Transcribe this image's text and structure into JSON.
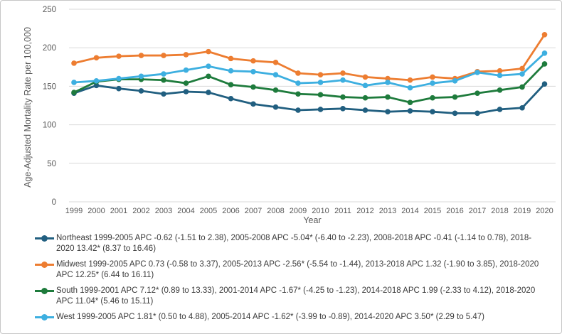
{
  "figure": {
    "background_color": "#FFFFFF",
    "border_color": "#C6C6C6",
    "gridline_color": "#D9D9D9",
    "tick_label_color": "#595959",
    "axis_title_color": "#595959",
    "legend_text_color": "#3A3A3A"
  },
  "chart_data": {
    "type": "line",
    "title": "",
    "xlabel": "Year",
    "ylabel": "Age-Adjusted Mortality Rate per 100,000",
    "x": [
      1999,
      2000,
      2001,
      2002,
      2003,
      2004,
      2005,
      2006,
      2007,
      2008,
      2009,
      2010,
      2011,
      2012,
      2013,
      2014,
      2015,
      2016,
      2017,
      2018,
      2019,
      2020
    ],
    "ylim": [
      0,
      250
    ],
    "y_ticks": [
      0,
      50,
      100,
      150,
      200,
      250
    ],
    "grid": "horizontal-on",
    "legend_position": "bottom-left",
    "marker": "circle",
    "series": [
      {
        "name": "Northeast",
        "color": "#215F80",
        "values": [
          141,
          151,
          147,
          144,
          140,
          143,
          142,
          134,
          127,
          123,
          119,
          120,
          121,
          119,
          117,
          118,
          117,
          115,
          115,
          120,
          122,
          153
        ],
        "legend_label": "Northeast 1999-2005 APC -0.62 (-1.51 to 2.38), 2005-2008 APC -5.04* (-6.40 to -2.23), 2008-2018 APC -0.41 (-1.14 to 0.78), 2018-2020 13.42* (8.37 to 16.46)"
      },
      {
        "name": "Midwest",
        "color": "#ED7D31",
        "values": [
          180,
          187,
          189,
          190,
          190,
          191,
          195,
          186,
          183,
          181,
          167,
          165,
          167,
          162,
          160,
          158,
          162,
          160,
          169,
          170,
          173,
          217
        ],
        "legend_label": "Midwest 1999-2005 APC 0.73 (-0.58 to 3.37), 2005-2013 APC -2.56* (-5.54 to -1.44), 2013-2018 APC 1.32 (-1.90 to 3.85), 2018-2020 APC 12.25* (6.44 to 16.11)"
      },
      {
        "name": "South",
        "color": "#1E7B3C",
        "values": [
          142,
          156,
          159,
          159,
          158,
          154,
          163,
          152,
          149,
          145,
          140,
          139,
          136,
          135,
          136,
          129,
          135,
          136,
          141,
          145,
          149,
          179
        ],
        "legend_label": "South 1999-2001 APC 7.12* (0.89 to 13.33), 2001-2014 APC -1.67* (-4.25 to -1.23), 2014-2018 APC 1.99 (-2.33 to 4.12), 2018-2020 APC 11.04* (5.46 to 15.11)"
      },
      {
        "name": "West",
        "color": "#3DAFE0",
        "values": [
          155,
          157,
          160,
          163,
          166,
          171,
          176,
          170,
          169,
          165,
          154,
          155,
          158,
          151,
          155,
          148,
          154,
          157,
          168,
          164,
          166,
          193
        ],
        "legend_label": "West 1999-2005 APC 1.81* (0.50 to 4.88), 2005-2014 APC -1.62* (-3.99 to -0.89), 2014-2020 APC 3.50* (2.29 to 5.47)"
      }
    ]
  }
}
